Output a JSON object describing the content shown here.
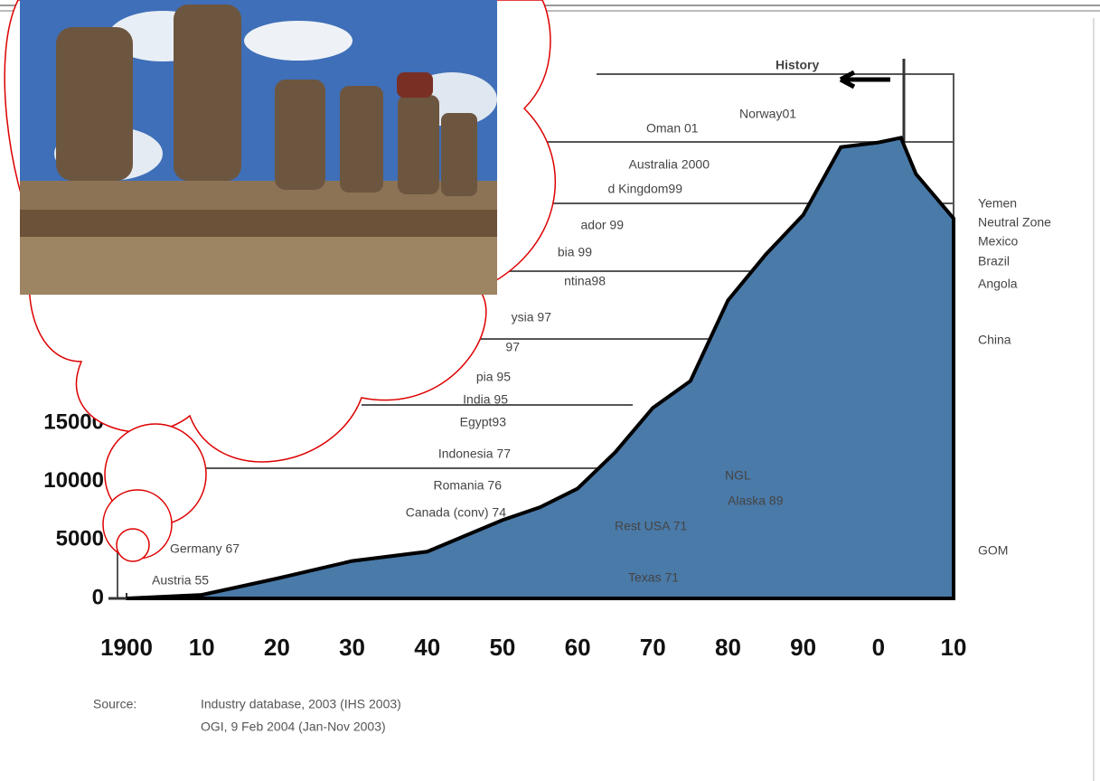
{
  "chart_data": {
    "type": "area",
    "x": [
      1900,
      1910,
      1920,
      1930,
      1940,
      1950,
      1955,
      1960,
      1965,
      1970,
      1975,
      1980,
      1985,
      1990,
      1995,
      2000,
      2003,
      2005,
      2010
    ],
    "values": [
      0,
      300,
      1700,
      3200,
      4000,
      6700,
      7800,
      9400,
      12500,
      16300,
      18600,
      25500,
      29400,
      32800,
      38600,
      39000,
      39400,
      36300,
      32500
    ],
    "color": "#4a7aa8",
    "xlim": [
      1900,
      2010
    ],
    "xticks": [
      1900,
      {
        "value": 1910,
        "label": "10"
      },
      {
        "value": 1920,
        "label": "20"
      },
      {
        "value": 1930,
        "label": "30"
      },
      {
        "value": 1940,
        "label": "40"
      },
      {
        "value": 1950,
        "label": "50"
      },
      {
        "value": 1960,
        "label": "60"
      },
      {
        "value": 1970,
        "label": "70"
      },
      {
        "value": 1980,
        "label": "80"
      },
      {
        "value": 1990,
        "label": "90"
      },
      {
        "value": 2000,
        "label": "0"
      },
      {
        "value": 2010,
        "label": "10"
      }
    ],
    "ylim": [
      0,
      45000
    ],
    "yticks": [
      0,
      5000,
      10000,
      15000
    ],
    "annotations": [
      "History",
      "Norway01",
      "Oman 01",
      "Australia 2000",
      "d Kingdom99",
      "ador 99",
      "bia 99",
      "ntina98",
      "ysia 97",
      "97",
      "pia 95",
      "India 95",
      "Egypt93",
      "Indonesia 77",
      "Romania 76",
      "Canada (conv) 74",
      "Germany 67",
      "Austria 55",
      "Rest USA 71",
      "Texas 71",
      "NGL",
      "Alaska 89",
      "Yemen",
      "Neutral Zone",
      "Mexico",
      "Brazil",
      "Angola",
      "China",
      "GOM"
    ],
    "source_label": "Source:",
    "source_lines": [
      "Industry database, 2003 (IHS 2003)",
      "OGI, 9 Feb 2004 (Jan-Nov 2003)"
    ]
  }
}
